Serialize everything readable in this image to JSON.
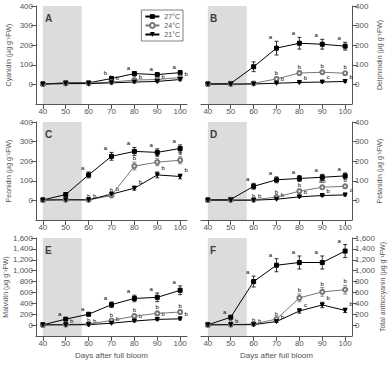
{
  "chart_data": [
    {
      "type": "line",
      "title": "A",
      "ylabel": "Cyanidin (μg g⁻¹FW)",
      "x": [
        40,
        50,
        60,
        70,
        80,
        90,
        100
      ],
      "xlim": [
        37,
        103
      ],
      "xticks": [
        40,
        50,
        60,
        70,
        80,
        90,
        100
      ],
      "ylim": [
        -100,
        400
      ],
      "yticks": [
        0,
        100,
        200,
        300,
        400
      ],
      "grid": false,
      "legend": "upper right",
      "shade": {
        "x": [
          40,
          57
        ],
        "color": "#dcdcdc"
      },
      "series": [
        {
          "name": "27°C",
          "color": "#000000",
          "marker": "square",
          "values": [
            2,
            8,
            8,
            30,
            55,
            50,
            60
          ],
          "errors": [
            2,
            3,
            3,
            8,
            10,
            8,
            10
          ],
          "letters": [
            null,
            null,
            null,
            "b",
            "a",
            "a",
            "a"
          ]
        },
        {
          "name": "24°C",
          "color": "#777777",
          "marker": "circle-open",
          "values": [
            2,
            5,
            5,
            12,
            22,
            25,
            35
          ],
          "errors": [
            1,
            2,
            2,
            5,
            6,
            5,
            8
          ],
          "letters": [
            null,
            null,
            null,
            "b",
            "b",
            "b",
            "a"
          ]
        },
        {
          "name": "21°C",
          "color": "#000000",
          "marker": "triangle-down",
          "values": [
            2,
            4,
            4,
            8,
            12,
            15,
            25
          ],
          "errors": [
            1,
            1,
            1,
            3,
            4,
            4,
            6
          ],
          "letters": [
            null,
            null,
            null,
            "b",
            "b",
            "b",
            "b"
          ]
        }
      ]
    },
    {
      "type": "line",
      "title": "B",
      "ylabel": "Delphinidin (μg g⁻¹FW)",
      "x": [
        40,
        50,
        60,
        70,
        80,
        90,
        100
      ],
      "xlim": [
        37,
        103
      ],
      "xticks": [
        40,
        50,
        60,
        70,
        80,
        90,
        100
      ],
      "ylim": [
        -100,
        400
      ],
      "yticks": [
        0,
        100,
        200,
        300,
        400
      ],
      "grid": false,
      "shade": {
        "x": [
          40,
          57
        ],
        "color": "#dcdcdc"
      },
      "series": [
        {
          "name": "27°C",
          "color": "#000000",
          "marker": "square",
          "values": [
            2,
            5,
            90,
            185,
            210,
            205,
            195
          ],
          "errors": [
            2,
            3,
            25,
            35,
            30,
            25,
            20
          ],
          "letters": [
            null,
            null,
            null,
            "a",
            "a",
            "a",
            "a"
          ]
        },
        {
          "name": "24°C",
          "color": "#777777",
          "marker": "circle-open",
          "values": [
            2,
            2,
            5,
            28,
            58,
            62,
            57
          ],
          "errors": [
            1,
            1,
            3,
            8,
            12,
            10,
            10
          ],
          "letters": [
            null,
            null,
            null,
            "b",
            "b",
            "b",
            "b"
          ]
        },
        {
          "name": "21°C",
          "color": "#000000",
          "marker": "triangle-down",
          "values": [
            2,
            1,
            2,
            6,
            10,
            12,
            15
          ],
          "errors": [
            1,
            1,
            1,
            2,
            3,
            3,
            4
          ],
          "letters": [
            null,
            null,
            null,
            "b",
            "b",
            "c",
            "b"
          ]
        }
      ]
    },
    {
      "type": "line",
      "title": "C",
      "ylabel": "Peonidin (μg g⁻¹FW)",
      "x": [
        40,
        50,
        60,
        70,
        80,
        90,
        100
      ],
      "xlim": [
        37,
        103
      ],
      "xticks": [
        40,
        50,
        60,
        70,
        80,
        90,
        100
      ],
      "ylim": [
        -100,
        400
      ],
      "yticks": [
        0,
        100,
        200,
        300,
        400
      ],
      "grid": false,
      "shade": {
        "x": [
          40,
          57
        ],
        "color": "#dcdcdc"
      },
      "series": [
        {
          "name": "27°C",
          "color": "#000000",
          "marker": "square",
          "values": [
            2,
            30,
            130,
            225,
            250,
            245,
            265
          ],
          "errors": [
            2,
            8,
            15,
            20,
            20,
            18,
            18
          ],
          "letters": [
            null,
            null,
            "a",
            "a",
            "a",
            "a",
            "a"
          ]
        },
        {
          "name": "24°C",
          "color": "#777777",
          "marker": "circle-open",
          "values": [
            2,
            3,
            2,
            25,
            175,
            195,
            205
          ],
          "errors": [
            1,
            1,
            1,
            8,
            20,
            18,
            18
          ],
          "letters": [
            null,
            null,
            "b",
            "b",
            "b",
            "a",
            "a"
          ]
        },
        {
          "name": "21°C",
          "color": "#000000",
          "marker": "triangle-down",
          "values": [
            2,
            3,
            3,
            32,
            62,
            130,
            122
          ],
          "errors": [
            1,
            1,
            1,
            8,
            10,
            15,
            12
          ],
          "letters": [
            null,
            null,
            "b",
            "b",
            "b",
            "b",
            "b"
          ]
        }
      ]
    },
    {
      "type": "line",
      "title": "D",
      "ylabel": "Petanidin (μg g⁻¹FW)",
      "x": [
        40,
        50,
        60,
        70,
        80,
        90,
        100
      ],
      "xlim": [
        37,
        103
      ],
      "xticks": [
        40,
        50,
        60,
        70,
        80,
        90,
        100
      ],
      "ylim": [
        -100,
        400
      ],
      "yticks": [
        0,
        100,
        200,
        300,
        400
      ],
      "grid": false,
      "shade": {
        "x": [
          40,
          57
        ],
        "color": "#dcdcdc"
      },
      "series": [
        {
          "name": "27°C",
          "color": "#000000",
          "marker": "square",
          "values": [
            2,
            5,
            72,
            105,
            112,
            118,
            125
          ],
          "errors": [
            2,
            3,
            15,
            15,
            15,
            15,
            15
          ],
          "letters": [
            null,
            null,
            "a",
            "a",
            "a",
            "a",
            "a"
          ]
        },
        {
          "name": "24°C",
          "color": "#777777",
          "marker": "circle-open",
          "values": [
            2,
            2,
            3,
            17,
            47,
            67,
            72
          ],
          "errors": [
            1,
            1,
            1,
            5,
            10,
            10,
            10
          ],
          "letters": [
            null,
            null,
            "b",
            "b",
            "b",
            "ab",
            "b"
          ]
        },
        {
          "name": "21°C",
          "color": "#000000",
          "marker": "triangle-down",
          "values": [
            2,
            1,
            1,
            6,
            18,
            25,
            28
          ],
          "errors": [
            1,
            1,
            1,
            2,
            4,
            5,
            5
          ],
          "letters": [
            null,
            null,
            "b",
            "b",
            "b",
            "b",
            "c"
          ]
        }
      ]
    },
    {
      "type": "line",
      "title": "E",
      "ylabel": "Malvidin (μg g⁻¹FW)",
      "xlabel": "Days after full bloom",
      "x": [
        40,
        50,
        60,
        70,
        80,
        90,
        100
      ],
      "xlim": [
        37,
        103
      ],
      "xticks": [
        40,
        50,
        60,
        70,
        80,
        90,
        100
      ],
      "ylim": [
        -200,
        1600
      ],
      "yticks": [
        0,
        200,
        400,
        600,
        800,
        1000,
        1200,
        1400,
        1600
      ],
      "grid": false,
      "shade": {
        "x": [
          40,
          57
        ],
        "color": "#dcdcdc"
      },
      "series": [
        {
          "name": "27°C",
          "color": "#000000",
          "marker": "square",
          "values": [
            5,
            110,
            200,
            375,
            490,
            510,
            640
          ],
          "errors": [
            5,
            20,
            30,
            50,
            60,
            80,
            80
          ],
          "letters": [
            null,
            "a",
            "a",
            "a",
            "a",
            "a",
            "a"
          ]
        },
        {
          "name": "24°C",
          "color": "#777777",
          "marker": "circle-open",
          "values": [
            5,
            10,
            20,
            85,
            165,
            215,
            240
          ],
          "errors": [
            2,
            3,
            5,
            20,
            40,
            40,
            40
          ],
          "letters": [
            null,
            "b",
            "b",
            "b",
            "b",
            "b",
            "b"
          ]
        },
        {
          "name": "21°C",
          "color": "#000000",
          "marker": "triangle-down",
          "values": [
            5,
            5,
            8,
            35,
            75,
            105,
            115
          ],
          "errors": [
            2,
            2,
            2,
            8,
            15,
            18,
            18
          ],
          "letters": [
            null,
            "b",
            "b",
            "b",
            "b",
            "b",
            "b"
          ]
        }
      ]
    },
    {
      "type": "line",
      "title": "F",
      "ylabel": "Total anthocyanin (μg g⁻¹FW)",
      "xlabel": "Days after full bloom",
      "x": [
        40,
        50,
        60,
        70,
        80,
        90,
        100
      ],
      "xlim": [
        37,
        103
      ],
      "xticks": [
        40,
        50,
        60,
        70,
        80,
        90,
        100
      ],
      "ylim": [
        -200,
        1600
      ],
      "yticks": [
        0,
        200,
        400,
        600,
        800,
        1000,
        1200,
        1400,
        1600
      ],
      "grid": false,
      "shade": {
        "x": [
          40,
          57
        ],
        "color": "#dcdcdc"
      },
      "series": [
        {
          "name": "27°C",
          "color": "#000000",
          "marker": "square",
          "values": [
            5,
            145,
            800,
            1100,
            1150,
            1150,
            1360
          ],
          "errors": [
            5,
            30,
            100,
            120,
            120,
            120,
            120
          ],
          "letters": [
            null,
            "a",
            "a",
            "a",
            "a",
            "a",
            "a"
          ]
        },
        {
          "name": "24°C",
          "color": "#777777",
          "marker": "circle-open",
          "values": [
            5,
            8,
            20,
            110,
            500,
            610,
            650
          ],
          "errors": [
            2,
            3,
            5,
            25,
            70,
            80,
            80
          ],
          "letters": [
            null,
            "b",
            "b",
            "b",
            "b",
            "b",
            "b"
          ]
        },
        {
          "name": "21°C",
          "color": "#000000",
          "marker": "triangle-down",
          "values": [
            5,
            8,
            8,
            65,
            260,
            370,
            270
          ],
          "errors": [
            2,
            2,
            2,
            15,
            40,
            50,
            40
          ],
          "letters": [
            null,
            "b",
            "b",
            "b",
            "c",
            "b",
            "b"
          ]
        }
      ]
    }
  ]
}
